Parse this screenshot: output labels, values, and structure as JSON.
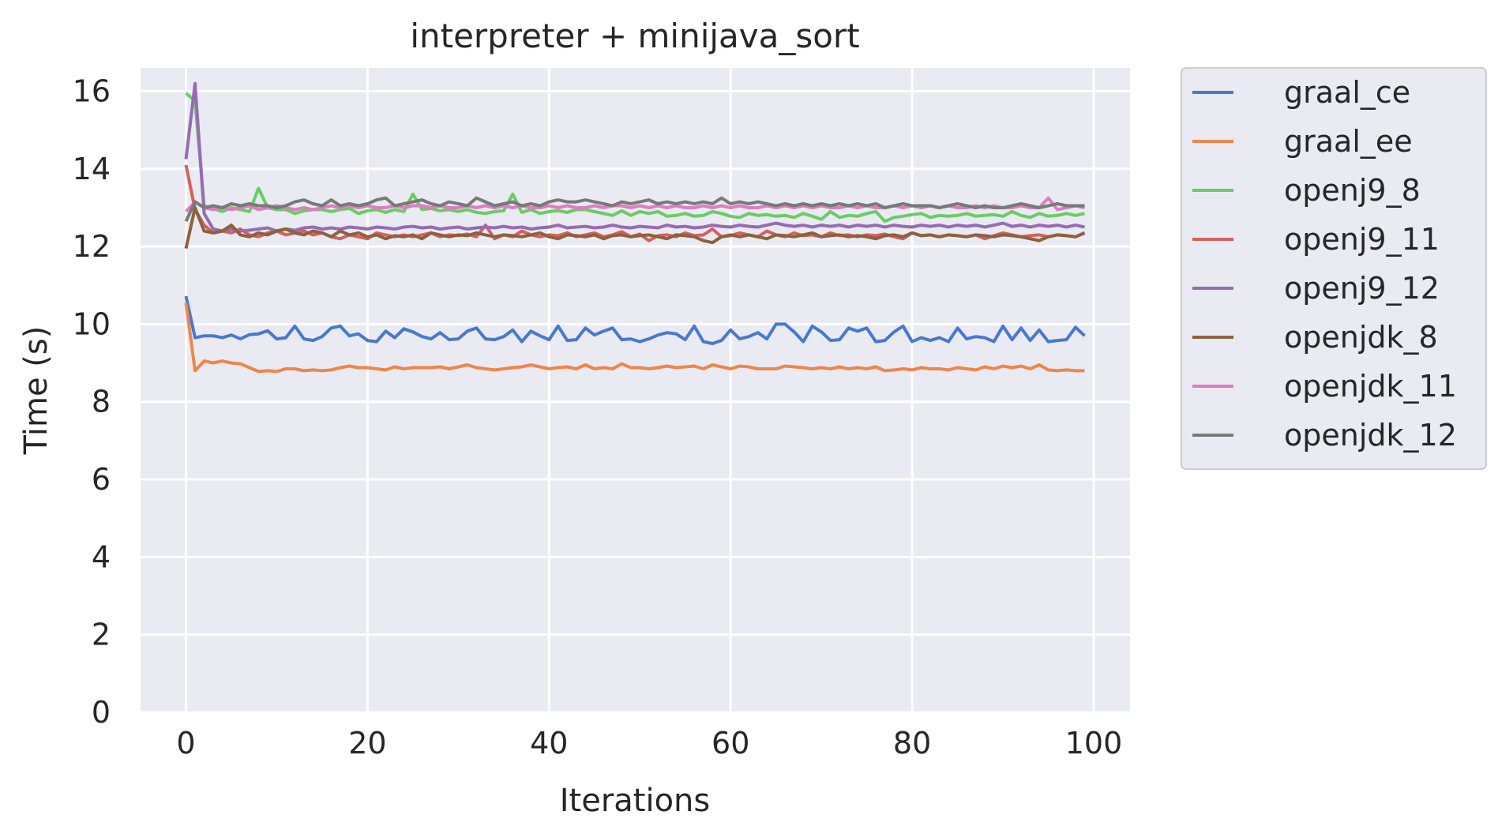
{
  "chart_data": {
    "type": "line",
    "title": "interpreter + minijava_sort",
    "xlabel": "Iterations",
    "ylabel": "Time (s)",
    "xlim": [
      -5,
      104
    ],
    "ylim": [
      0,
      16.6
    ],
    "xticks": [
      0,
      20,
      40,
      60,
      80,
      100
    ],
    "yticks": [
      0,
      2,
      4,
      6,
      8,
      10,
      12,
      14,
      16
    ],
    "grid": true,
    "legend_position": "outside-right-top",
    "series": [
      {
        "name": "graal_ce",
        "color": "#4878d0",
        "values": [
          10.72,
          9.65,
          9.7,
          9.7,
          9.65,
          9.72,
          9.62,
          9.73,
          9.75,
          9.83,
          9.62,
          9.65,
          9.95,
          9.62,
          9.58,
          9.68,
          9.9,
          9.95,
          9.7,
          9.75,
          9.58,
          9.55,
          9.82,
          9.65,
          9.88,
          9.8,
          9.68,
          9.62,
          9.78,
          9.6,
          9.62,
          9.82,
          9.9,
          9.62,
          9.6,
          9.68,
          9.85,
          9.55,
          9.82,
          9.7,
          9.6,
          9.95,
          9.58,
          9.6,
          9.9,
          9.72,
          9.82,
          9.9,
          9.6,
          9.62,
          9.55,
          9.62,
          9.72,
          9.78,
          9.75,
          9.6,
          9.95,
          9.55,
          9.5,
          9.58,
          9.85,
          9.62,
          9.68,
          9.78,
          9.62,
          10.0,
          10.0,
          9.8,
          9.55,
          9.95,
          9.8,
          9.58,
          9.6,
          9.9,
          9.82,
          9.9,
          9.55,
          9.58,
          9.8,
          9.95,
          9.55,
          9.65,
          9.58,
          9.65,
          9.55,
          9.9,
          9.62,
          9.68,
          9.65,
          9.55,
          9.95,
          9.6,
          9.9,
          9.58,
          9.85,
          9.55,
          9.58,
          9.6,
          9.92,
          9.7
        ]
      },
      {
        "name": "graal_ee",
        "color": "#ee854a",
        "values": [
          10.55,
          8.8,
          9.05,
          9.0,
          9.05,
          9.0,
          8.98,
          8.88,
          8.78,
          8.8,
          8.78,
          8.85,
          8.85,
          8.8,
          8.82,
          8.8,
          8.82,
          8.88,
          8.92,
          8.88,
          8.88,
          8.85,
          8.82,
          8.9,
          8.85,
          8.88,
          8.88,
          8.88,
          8.9,
          8.85,
          8.9,
          8.95,
          8.88,
          8.85,
          8.82,
          8.85,
          8.88,
          8.9,
          8.95,
          8.9,
          8.85,
          8.88,
          8.9,
          8.85,
          8.95,
          8.85,
          8.88,
          8.85,
          8.98,
          8.88,
          8.88,
          8.85,
          8.88,
          8.92,
          8.88,
          8.9,
          8.92,
          8.85,
          8.95,
          8.9,
          8.85,
          8.92,
          8.9,
          8.85,
          8.85,
          8.85,
          8.92,
          8.9,
          8.88,
          8.85,
          8.88,
          8.85,
          8.9,
          8.85,
          8.88,
          8.85,
          8.9,
          8.8,
          8.82,
          8.85,
          8.82,
          8.88,
          8.85,
          8.85,
          8.82,
          8.88,
          8.85,
          8.82,
          8.9,
          8.85,
          8.92,
          8.88,
          8.92,
          8.85,
          8.95,
          8.82,
          8.8,
          8.82,
          8.8,
          8.8
        ]
      },
      {
        "name": "openj9_8",
        "color": "#6acc64",
        "values": [
          15.95,
          15.75,
          13.05,
          12.98,
          12.9,
          13.0,
          12.95,
          12.9,
          13.5,
          13.0,
          12.95,
          12.95,
          12.85,
          12.92,
          12.95,
          12.95,
          12.9,
          12.95,
          12.98,
          12.85,
          12.92,
          12.95,
          12.88,
          12.95,
          12.9,
          13.35,
          12.95,
          12.98,
          12.92,
          12.95,
          12.9,
          12.95,
          12.88,
          12.85,
          12.9,
          12.92,
          13.35,
          12.88,
          12.95,
          12.85,
          12.9,
          12.92,
          12.88,
          12.95,
          12.95,
          12.9,
          12.85,
          12.8,
          12.92,
          12.8,
          12.9,
          12.85,
          12.9,
          12.78,
          12.8,
          12.85,
          12.78,
          12.8,
          12.9,
          12.85,
          12.78,
          12.75,
          12.85,
          12.8,
          12.82,
          12.78,
          12.8,
          12.75,
          12.85,
          12.78,
          12.7,
          12.9,
          12.75,
          12.8,
          12.78,
          12.85,
          12.9,
          12.65,
          12.75,
          12.78,
          12.82,
          12.85,
          12.75,
          12.8,
          12.78,
          12.8,
          12.85,
          12.78,
          12.8,
          12.82,
          12.78,
          12.9,
          12.8,
          12.75,
          12.85,
          12.78,
          12.8,
          12.85,
          12.8,
          12.85
        ]
      },
      {
        "name": "openj9_11",
        "color": "#d65f5f",
        "values": [
          14.1,
          12.95,
          12.55,
          12.35,
          12.4,
          12.35,
          12.45,
          12.3,
          12.25,
          12.35,
          12.4,
          12.3,
          12.35,
          12.4,
          12.3,
          12.35,
          12.25,
          12.2,
          12.3,
          12.25,
          12.2,
          12.35,
          12.3,
          12.25,
          12.3,
          12.25,
          12.3,
          12.35,
          12.25,
          12.3,
          12.28,
          12.32,
          12.25,
          12.55,
          12.2,
          12.3,
          12.25,
          12.4,
          12.3,
          12.25,
          12.3,
          12.28,
          12.35,
          12.25,
          12.3,
          12.35,
          12.25,
          12.3,
          12.38,
          12.25,
          12.32,
          12.15,
          12.28,
          12.3,
          12.25,
          12.35,
          12.28,
          12.3,
          12.45,
          12.25,
          12.28,
          12.35,
          12.3,
          12.25,
          12.4,
          12.3,
          12.25,
          12.35,
          12.28,
          12.3,
          12.25,
          12.35,
          12.28,
          12.3,
          12.25,
          12.3,
          12.28,
          12.32,
          12.25,
          12.2,
          12.35,
          12.28,
          12.3,
          12.25,
          12.3,
          12.28,
          12.25,
          12.3,
          12.2,
          12.28,
          12.35,
          12.3,
          12.25,
          12.28,
          12.3,
          12.25,
          12.3,
          12.28,
          12.25,
          12.35
        ]
      },
      {
        "name": "openj9_12",
        "color": "#956cb4",
        "values": [
          14.25,
          16.2,
          12.85,
          12.45,
          12.4,
          12.45,
          12.4,
          12.42,
          12.45,
          12.48,
          12.4,
          12.45,
          12.42,
          12.48,
          12.5,
          12.45,
          12.48,
          12.45,
          12.5,
          12.48,
          12.45,
          12.5,
          12.48,
          12.45,
          12.5,
          12.52,
          12.48,
          12.5,
          12.45,
          12.48,
          12.5,
          12.45,
          12.48,
          12.5,
          12.48,
          12.52,
          12.48,
          12.5,
          12.45,
          12.48,
          12.5,
          12.55,
          12.48,
          12.5,
          12.52,
          12.48,
          12.5,
          12.55,
          12.5,
          12.48,
          12.52,
          12.5,
          12.48,
          12.55,
          12.5,
          12.52,
          12.48,
          12.5,
          12.55,
          12.52,
          12.5,
          12.55,
          12.52,
          12.5,
          12.55,
          12.6,
          12.55,
          12.52,
          12.55,
          12.5,
          12.55,
          12.52,
          12.55,
          12.5,
          12.55,
          12.52,
          12.55,
          12.5,
          12.55,
          12.52,
          12.5,
          12.55,
          12.52,
          12.55,
          12.5,
          12.55,
          12.52,
          12.55,
          12.5,
          12.55,
          12.6,
          12.52,
          12.55,
          12.5,
          12.55,
          12.52,
          12.55,
          12.5,
          12.55,
          12.5
        ]
      },
      {
        "name": "openjdk_8",
        "color": "#8c613c",
        "values": [
          11.95,
          13.0,
          12.4,
          12.35,
          12.4,
          12.55,
          12.3,
          12.25,
          12.35,
          12.3,
          12.4,
          12.45,
          12.35,
          12.3,
          12.4,
          12.35,
          12.25,
          12.4,
          12.3,
          12.35,
          12.25,
          12.3,
          12.2,
          12.28,
          12.25,
          12.3,
          12.2,
          12.35,
          12.3,
          12.25,
          12.3,
          12.28,
          12.35,
          12.3,
          12.25,
          12.3,
          12.28,
          12.25,
          12.3,
          12.35,
          12.25,
          12.2,
          12.3,
          12.28,
          12.25,
          12.3,
          12.2,
          12.28,
          12.3,
          12.25,
          12.28,
          12.3,
          12.25,
          12.2,
          12.3,
          12.28,
          12.25,
          12.15,
          12.1,
          12.25,
          12.3,
          12.25,
          12.3,
          12.25,
          12.2,
          12.3,
          12.28,
          12.25,
          12.3,
          12.35,
          12.25,
          12.28,
          12.3,
          12.25,
          12.28,
          12.25,
          12.2,
          12.28,
          12.3,
          12.25,
          12.35,
          12.28,
          12.3,
          12.25,
          12.3,
          12.28,
          12.25,
          12.3,
          12.28,
          12.25,
          12.3,
          12.28,
          12.25,
          12.2,
          12.15,
          12.25,
          12.3,
          12.28,
          12.25,
          12.35
        ]
      },
      {
        "name": "openjdk_11",
        "color": "#dc7ec0",
        "values": [
          12.9,
          13.15,
          13.0,
          12.95,
          13.0,
          12.95,
          13.0,
          13.05,
          12.95,
          13.0,
          13.05,
          13.0,
          12.95,
          13.0,
          12.95,
          13.0,
          13.05,
          13.0,
          13.05,
          13.0,
          13.05,
          13.0,
          13.0,
          13.05,
          13.0,
          13.05,
          13.05,
          13.0,
          13.05,
          13.0,
          13.0,
          13.05,
          13.0,
          13.05,
          13.0,
          13.05,
          13.0,
          13.05,
          13.0,
          13.0,
          13.05,
          13.0,
          13.05,
          13.0,
          13.0,
          13.05,
          13.0,
          13.05,
          13.05,
          13.0,
          13.05,
          13.0,
          13.05,
          13.0,
          13.05,
          13.0,
          13.0,
          13.05,
          13.0,
          13.05,
          13.0,
          13.05,
          13.0,
          13.0,
          13.05,
          13.0,
          13.05,
          13.0,
          13.05,
          13.0,
          13.05,
          13.0,
          13.0,
          13.05,
          13.0,
          13.05,
          13.0,
          13.0,
          13.05,
          13.0,
          13.05,
          13.0,
          13.05,
          13.0,
          13.05,
          13.0,
          13.0,
          13.05,
          13.0,
          13.05,
          13.0,
          13.0,
          13.05,
          13.0,
          13.0,
          13.25,
          12.95,
          13.0,
          13.05,
          13.0
        ]
      },
      {
        "name": "openjdk_12",
        "color": "#797979",
        "values": [
          12.65,
          13.15,
          13.0,
          13.05,
          13.0,
          13.1,
          13.05,
          13.1,
          13.05,
          13.05,
          13.0,
          13.05,
          13.15,
          13.2,
          13.1,
          13.05,
          13.2,
          13.05,
          13.1,
          13.05,
          13.1,
          13.2,
          13.25,
          13.05,
          13.1,
          13.15,
          13.2,
          13.1,
          13.05,
          13.15,
          13.1,
          13.05,
          13.25,
          13.15,
          13.05,
          13.1,
          13.15,
          13.05,
          13.1,
          13.05,
          13.15,
          13.2,
          13.15,
          13.15,
          13.2,
          13.15,
          13.1,
          13.05,
          13.15,
          13.1,
          13.15,
          13.2,
          13.1,
          13.15,
          13.1,
          13.15,
          13.1,
          13.15,
          13.1,
          13.25,
          13.1,
          13.15,
          13.1,
          13.15,
          13.1,
          13.05,
          13.1,
          13.05,
          13.1,
          13.05,
          13.1,
          13.05,
          13.1,
          13.05,
          13.1,
          13.05,
          13.1,
          13.0,
          13.05,
          13.1,
          13.05,
          13.05,
          13.05,
          13.0,
          13.05,
          13.1,
          13.05,
          13.0,
          13.05,
          13.0,
          13.0,
          13.05,
          13.1,
          13.05,
          13.0,
          13.05,
          13.1,
          13.05,
          13.05,
          13.05
        ]
      }
    ]
  }
}
